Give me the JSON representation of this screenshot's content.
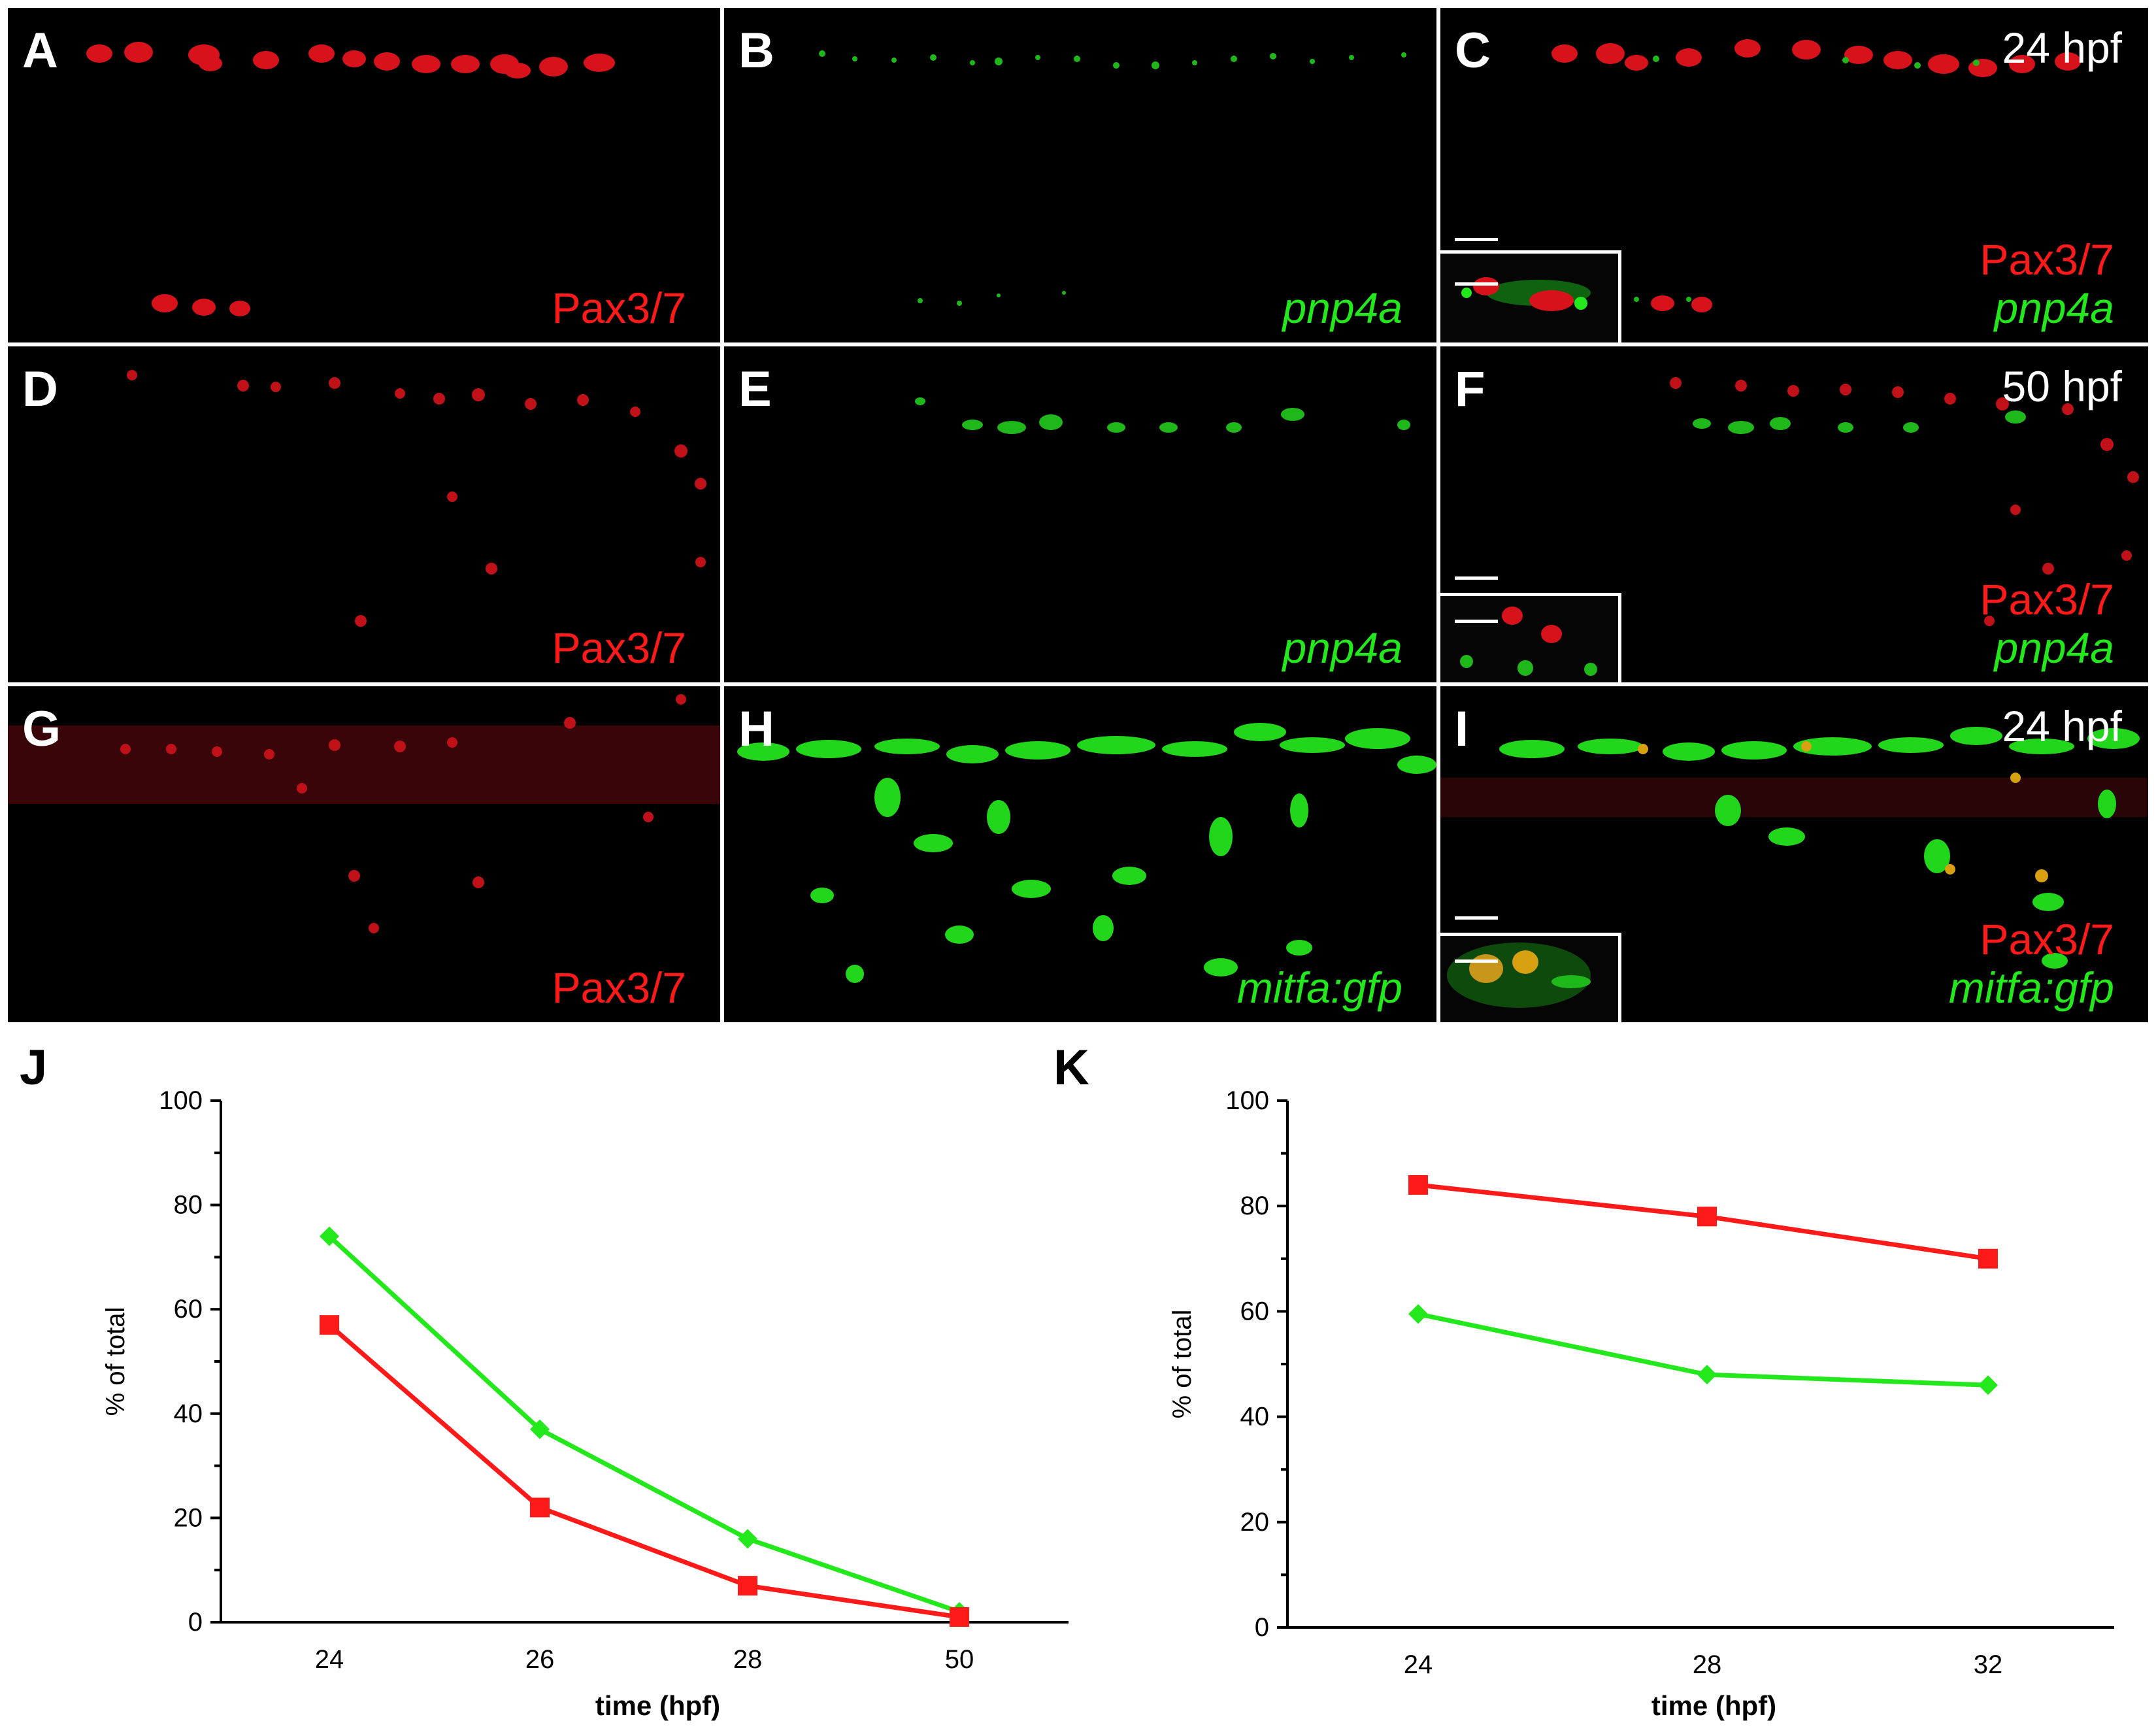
{
  "panels": {
    "A": {
      "label": "A",
      "markers": [
        "Pax3/7"
      ]
    },
    "B": {
      "label": "B",
      "markers": [
        "pnp4a"
      ]
    },
    "C": {
      "label": "C",
      "stage": "24 hpf",
      "markers": [
        "Pax3/7",
        "pnp4a"
      ]
    },
    "D": {
      "label": "D",
      "markers": [
        "Pax3/7"
      ]
    },
    "E": {
      "label": "E",
      "markers": [
        "pnp4a"
      ]
    },
    "F": {
      "label": "F",
      "stage": "50 hpf",
      "markers": [
        "Pax3/7",
        "pnp4a"
      ]
    },
    "G": {
      "label": "G",
      "markers": [
        "Pax3/7"
      ]
    },
    "H": {
      "label": "H",
      "markers": [
        "mitfa:gfp"
      ]
    },
    "I": {
      "label": "I",
      "stage": "24 hpf",
      "markers": [
        "Pax3/7",
        "mitfa:gfp"
      ]
    }
  },
  "colors": {
    "red": "#ff1a1a",
    "green": "#22e81c",
    "background": "#000000"
  },
  "chart_data": [
    {
      "panel": "J",
      "type": "line",
      "categories": [
        "24",
        "26",
        "28",
        "50"
      ],
      "series": [
        {
          "color": "#22e81c",
          "marker": "diamond",
          "values": [
            74,
            37,
            16,
            2
          ]
        },
        {
          "color": "#ff1a1a",
          "marker": "square",
          "values": [
            57,
            22,
            7,
            1
          ]
        }
      ],
      "xlabel": "time (hpf)",
      "ylabel": "% of total",
      "ylim": [
        0,
        100
      ],
      "yticks": [
        "0",
        "20",
        "40",
        "60",
        "80",
        "100"
      ],
      "grid": false
    },
    {
      "panel": "K",
      "type": "line",
      "categories": [
        "24",
        "28",
        "32"
      ],
      "series": [
        {
          "color": "#ff1a1a",
          "marker": "square",
          "values": [
            84,
            78,
            70
          ]
        },
        {
          "color": "#22e81c",
          "marker": "diamond",
          "values": [
            59.5,
            48,
            46
          ]
        }
      ],
      "xlabel": "time (hpf)",
      "ylabel": "% of total",
      "ylim": [
        0,
        100
      ],
      "yticks": [
        "0",
        "20",
        "40",
        "60",
        "80",
        "100"
      ],
      "grid": false
    }
  ]
}
